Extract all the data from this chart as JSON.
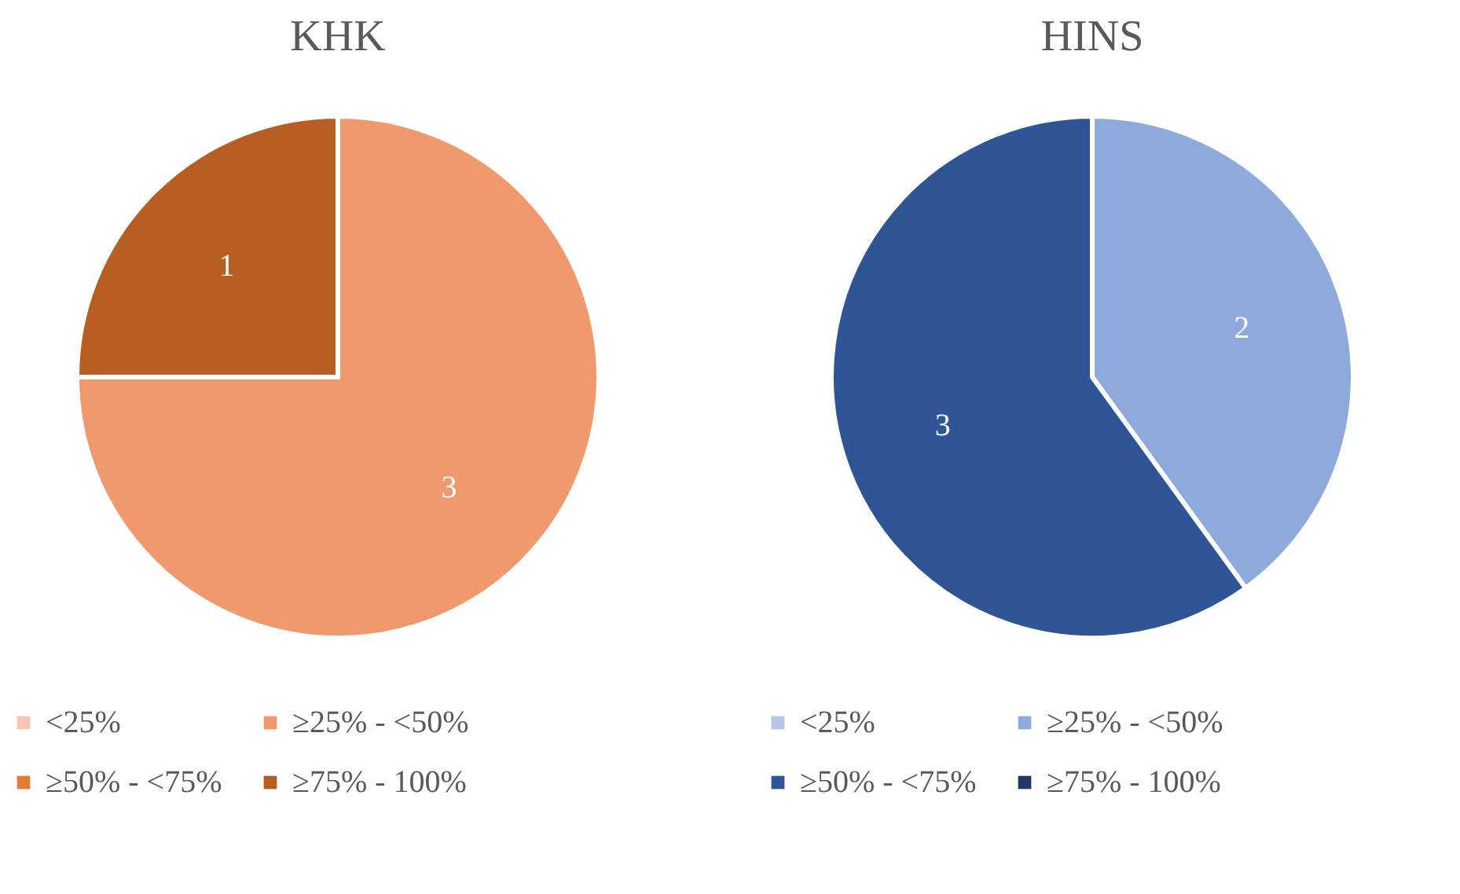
{
  "chart_data": [
    {
      "type": "pie",
      "title": "KHK",
      "categories": [
        "<25%",
        "≥25% - <50%",
        "≥50% - <75%",
        "≥75% - 100%"
      ],
      "values": [
        0,
        3,
        0,
        1
      ],
      "colors": [
        "#f8c5b2",
        "#f0996c",
        "#e07a35",
        "#b85e22"
      ],
      "data_labels": true,
      "legend": "bottom"
    },
    {
      "type": "pie",
      "title": "HINS",
      "categories": [
        "<25%",
        "≥25% - <50%",
        "≥50% - <75%",
        "≥75% - 100%"
      ],
      "values": [
        0,
        2,
        3,
        0
      ],
      "colors": [
        "#b4c7e7",
        "#8eaadb",
        "#2f5597",
        "#1f3864"
      ],
      "data_labels": true,
      "legend": "bottom"
    }
  ]
}
